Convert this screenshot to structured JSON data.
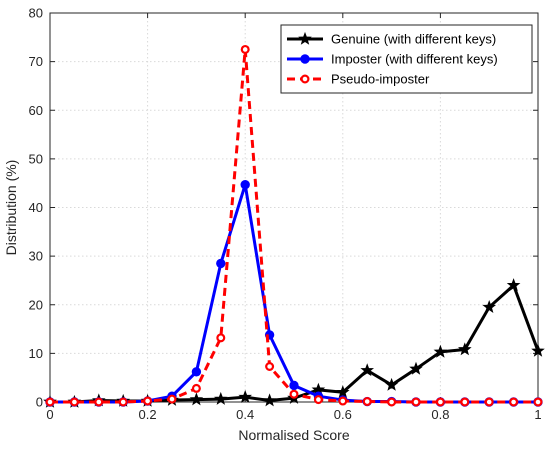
{
  "chart_data": {
    "type": "line",
    "title": "",
    "xlabel": "Normalised Score",
    "ylabel": "Distribution (%)",
    "xlim": [
      0,
      1
    ],
    "ylim": [
      0,
      80
    ],
    "xticks": [
      0,
      0.2,
      0.4,
      0.6,
      0.8,
      1
    ],
    "yticks": [
      0,
      10,
      20,
      30,
      40,
      50,
      60,
      70,
      80
    ],
    "xtick_labels": [
      "0",
      "0.2",
      "0.4",
      "0.6",
      "0.8",
      "1"
    ],
    "ytick_labels": [
      "0",
      "10",
      "20",
      "30",
      "40",
      "50",
      "60",
      "70",
      "80"
    ],
    "grid": true,
    "legend_position": "top-right",
    "series": [
      {
        "name": "Genuine (with different keys)",
        "color": "#000000",
        "line_style": "solid",
        "marker": "star",
        "x": [
          0,
          0.05,
          0.1,
          0.15,
          0.2,
          0.25,
          0.3,
          0.35,
          0.4,
          0.45,
          0.5,
          0.55,
          0.6,
          0.65,
          0.7,
          0.75,
          0.8,
          0.85,
          0.9,
          0.95,
          1
        ],
        "y": [
          0,
          0,
          0.3,
          0.2,
          0.2,
          0.4,
          0.5,
          0.6,
          1.0,
          0.3,
          0.8,
          2.5,
          2.0,
          6.5,
          3.5,
          6.8,
          10.3,
          10.8,
          19.5,
          24.0,
          10.5
        ]
      },
      {
        "name": "Imposter (with different keys)",
        "color": "#0000ff",
        "line_style": "solid",
        "marker": "circle",
        "x": [
          0,
          0.05,
          0.1,
          0.15,
          0.2,
          0.25,
          0.3,
          0.35,
          0.4,
          0.45,
          0.5,
          0.55,
          0.6,
          0.65,
          0.7,
          0.75,
          0.8,
          0.85,
          0.9,
          0.95,
          1
        ],
        "y": [
          0,
          0,
          0,
          0,
          0.2,
          1.2,
          6.2,
          28.5,
          44.7,
          13.8,
          3.4,
          1.2,
          0.4,
          0.1,
          0.1,
          0,
          0,
          0,
          0,
          0,
          0
        ]
      },
      {
        "name": "Pseudo-imposter",
        "color": "#ff0000",
        "line_style": "dashed",
        "marker": "open-circle",
        "x": [
          0,
          0.05,
          0.1,
          0.15,
          0.2,
          0.25,
          0.3,
          0.35,
          0.4,
          0.45,
          0.5,
          0.55,
          0.6,
          0.65,
          0.7,
          0.75,
          0.8,
          0.85,
          0.9,
          0.95,
          1
        ],
        "y": [
          0,
          0,
          0,
          0,
          0.2,
          0.6,
          2.8,
          13.2,
          72.5,
          7.3,
          1.6,
          0.5,
          0.2,
          0.1,
          0,
          0,
          0,
          0,
          0,
          0,
          0
        ]
      }
    ]
  }
}
